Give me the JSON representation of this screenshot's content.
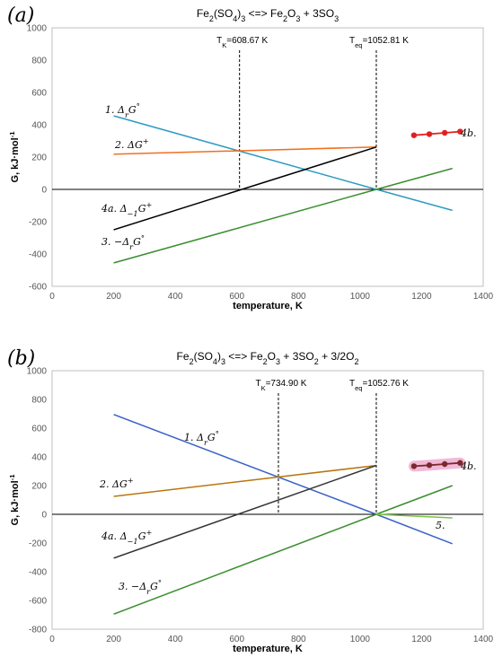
{
  "chart_data": [
    {
      "type": "line",
      "panel_label": "(a)",
      "title": "Fe2(SO4)3 <=> Fe2O3 + 3SO3",
      "xlabel": "temperature, K",
      "ylabel": "G, kJ·mol-1",
      "xlim": [
        0,
        1400
      ],
      "ylim": [
        -600,
        1000
      ],
      "x_ticks": [
        "0",
        "200",
        "400",
        "600",
        "800",
        "1000",
        "1200",
        "1400"
      ],
      "y_ticks": [
        "-600",
        "-400",
        "-200",
        "0",
        "200",
        "400",
        "600",
        "800",
        "1000"
      ],
      "vlines": [
        {
          "x": 608.67,
          "label": "TK=608.67 K"
        },
        {
          "x": 1052.81,
          "label": "Teq=1052.81 K"
        }
      ],
      "series": [
        {
          "name": "1. ΔrG°",
          "color": "#2E9BC0",
          "x": [
            200,
            1052.81,
            1300
          ],
          "y": [
            455,
            0,
            -130
          ]
        },
        {
          "name": "2. ΔG+",
          "color": "#F07020",
          "x": [
            200,
            1052.81
          ],
          "y": [
            218,
            262
          ]
        },
        {
          "name": "3. −ΔrG°",
          "color": "#3A8E2E",
          "x": [
            200,
            1052.81,
            1300
          ],
          "y": [
            -455,
            0,
            130
          ]
        },
        {
          "name": "4a. Δ−1G+",
          "color": "#000000",
          "x": [
            200,
            1052.81
          ],
          "y": [
            -250,
            262
          ]
        },
        {
          "name": "4b.",
          "color": "#E02020",
          "markers": true,
          "x": [
            1175,
            1225,
            1275,
            1325
          ],
          "y": [
            335,
            342,
            350,
            358
          ]
        }
      ]
    },
    {
      "type": "line",
      "panel_label": "(b)",
      "title": "Fe2(SO4)3 <=> Fe2O3 + 3SO2 + 3/2O2",
      "xlabel": "temperature, K",
      "ylabel": "G, kJ·mol-1",
      "xlim": [
        0,
        1400
      ],
      "ylim": [
        -800,
        1000
      ],
      "x_ticks": [
        "0",
        "200",
        "400",
        "600",
        "800",
        "1000",
        "1200",
        "1400"
      ],
      "y_ticks": [
        "-800",
        "-600",
        "-400",
        "-200",
        "0",
        "200",
        "400",
        "600",
        "800",
        "1000"
      ],
      "vlines": [
        {
          "x": 734.9,
          "label": "TK=734.90 K"
        },
        {
          "x": 1052.76,
          "label": "Teq=1052.76 K"
        }
      ],
      "series": [
        {
          "name": "1. ΔrG°",
          "color": "#3A62C8",
          "x": [
            200,
            1052.76,
            1300
          ],
          "y": [
            695,
            0,
            -205
          ]
        },
        {
          "name": "2. ΔG+",
          "color": "#B8760E",
          "x": [
            200,
            1052.76
          ],
          "y": [
            125,
            340
          ]
        },
        {
          "name": "3. −ΔrG°",
          "color": "#3A8E2E",
          "x": [
            200,
            1052.76,
            1300
          ],
          "y": [
            -695,
            0,
            200
          ]
        },
        {
          "name": "4a. Δ−1G+",
          "color": "#333333",
          "x": [
            200,
            1052.76
          ],
          "y": [
            -305,
            340
          ]
        },
        {
          "name": "4b.",
          "color": "#7A2A2A",
          "markers": true,
          "highlight": "#F2B8D8",
          "x": [
            1175,
            1225,
            1275,
            1325
          ],
          "y": [
            335,
            342,
            350,
            358
          ]
        },
        {
          "name": "5.",
          "color": "#7DC242",
          "x": [
            1052.76,
            1300
          ],
          "y": [
            0,
            -25
          ]
        }
      ]
    }
  ]
}
